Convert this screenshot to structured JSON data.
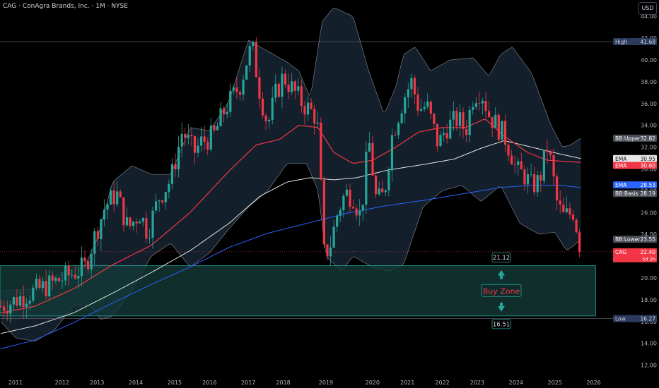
{
  "header": {
    "title": "CAG · ConAgra Brands, Inc. · 1M · NYSE",
    "currency_button": "USD"
  },
  "colors": {
    "background": "#000000",
    "up_candle": "#26a69a",
    "down_candle": "#f23645",
    "bollinger_band": "#9598a1",
    "bollinger_fill": "#1a2a3a",
    "ema_fast": "#f23645",
    "ema_slow": "#e0e0e0",
    "basis": "#2962ff",
    "buy_zone_fill": "#133a37",
    "buy_zone_border": "#26a69a",
    "buy_zone_text": "#f23645"
  },
  "chart_data": {
    "type": "candlestick",
    "ylim": [
      11,
      45.5
    ],
    "xlim": [
      2010.6,
      2026.6
    ],
    "yticks": [
      12,
      14,
      16,
      18,
      20,
      22,
      24,
      26,
      28,
      30,
      32,
      34,
      36,
      38,
      40,
      42,
      44
    ],
    "xticks": [
      {
        "x": 2011.0,
        "label": "2011"
      },
      {
        "x": 2012.2,
        "label": "2012"
      },
      {
        "x": 2013.1,
        "label": "2013"
      },
      {
        "x": 2014.1,
        "label": "2014"
      },
      {
        "x": 2015.1,
        "label": "2015"
      },
      {
        "x": 2016.0,
        "label": "2016"
      },
      {
        "x": 2017.0,
        "label": "2017"
      },
      {
        "x": 2017.9,
        "label": "2018"
      },
      {
        "x": 2019.0,
        "label": "2019"
      },
      {
        "x": 2020.2,
        "label": "2020"
      },
      {
        "x": 2021.1,
        "label": "2021"
      },
      {
        "x": 2022.0,
        "label": "2022"
      },
      {
        "x": 2022.9,
        "label": "2023"
      },
      {
        "x": 2023.9,
        "label": "2024"
      },
      {
        "x": 2024.9,
        "label": "2025"
      },
      {
        "x": 2025.9,
        "label": "2026"
      }
    ],
    "high_line": 41.68,
    "low_line": 16.27,
    "buy_zone": {
      "top": 21.12,
      "bottom": 16.51,
      "label": "Buy Zone",
      "top_label": "21.12",
      "bottom_label": "16.51"
    },
    "anchors": [
      [
        2010.62,
        17.4
      ],
      [
        2010.9,
        17.8
      ],
      [
        2011.3,
        18.5
      ],
      [
        2011.7,
        19.1
      ],
      [
        2012.0,
        19.6
      ],
      [
        2012.4,
        20.3
      ],
      [
        2012.8,
        21.0
      ],
      [
        2013.0,
        23.4
      ],
      [
        2013.3,
        26.5
      ],
      [
        2013.6,
        27.8
      ],
      [
        2013.9,
        24.5
      ],
      [
        2014.2,
        26.0
      ],
      [
        2014.4,
        24.2
      ],
      [
        2014.7,
        27.4
      ],
      [
        2015.0,
        29.0
      ],
      [
        2015.3,
        33.5
      ],
      [
        2015.6,
        31.5
      ],
      [
        2015.8,
        32.5
      ],
      [
        2016.1,
        33.0
      ],
      [
        2016.4,
        35.5
      ],
      [
        2016.8,
        37.8
      ],
      [
        2017.0,
        40.5
      ],
      [
        2017.1,
        41.2
      ],
      [
        2017.3,
        37.0
      ],
      [
        2017.5,
        34.0
      ],
      [
        2017.7,
        36.8
      ],
      [
        2017.9,
        38.5
      ],
      [
        2018.2,
        37.0
      ],
      [
        2018.4,
        36.0
      ],
      [
        2018.7,
        35.0
      ],
      [
        2018.8,
        33.5
      ],
      [
        2018.95,
        22.2
      ],
      [
        2019.1,
        22.8
      ],
      [
        2019.3,
        26.0
      ],
      [
        2019.5,
        27.8
      ],
      [
        2019.7,
        27.5
      ],
      [
        2019.9,
        25.5
      ],
      [
        2020.1,
        32.8
      ],
      [
        2020.3,
        27.0
      ],
      [
        2020.5,
        27.6
      ],
      [
        2020.7,
        33.0
      ],
      [
        2021.0,
        36.5
      ],
      [
        2021.2,
        38.0
      ],
      [
        2021.4,
        35.5
      ],
      [
        2021.6,
        35.8
      ],
      [
        2021.9,
        32.2
      ],
      [
        2022.1,
        33.8
      ],
      [
        2022.4,
        34.6
      ],
      [
        2022.6,
        33.5
      ],
      [
        2022.8,
        36.8
      ],
      [
        2023.0,
        37.2
      ],
      [
        2023.2,
        35.0
      ],
      [
        2023.4,
        34.0
      ],
      [
        2023.6,
        33.0
      ],
      [
        2023.8,
        31.2
      ],
      [
        2023.9,
        29.8
      ],
      [
        2024.1,
        29.5
      ],
      [
        2024.3,
        28.4
      ],
      [
        2024.5,
        28.9
      ],
      [
        2024.7,
        32.0
      ],
      [
        2024.8,
        30.5
      ],
      [
        2024.95,
        27.0
      ],
      [
        2025.1,
        25.6
      ],
      [
        2025.3,
        25.9
      ],
      [
        2025.4,
        26.2
      ],
      [
        2025.5,
        23.5
      ],
      [
        2025.57,
        22.4
      ]
    ],
    "ema_fast": [
      [
        2010.62,
        16.8
      ],
      [
        2011.5,
        17.4
      ],
      [
        2012.5,
        19.0
      ],
      [
        2013.5,
        21.2
      ],
      [
        2014.5,
        23.0
      ],
      [
        2015.5,
        26.0
      ],
      [
        2016.5,
        29.8
      ],
      [
        2017.2,
        32.2
      ],
      [
        2017.8,
        32.7
      ],
      [
        2018.3,
        34.0
      ],
      [
        2018.8,
        33.8
      ],
      [
        2019.2,
        31.5
      ],
      [
        2019.7,
        30.5
      ],
      [
        2020.2,
        30.8
      ],
      [
        2020.8,
        32.0
      ],
      [
        2021.4,
        33.4
      ],
      [
        2022.0,
        33.8
      ],
      [
        2022.6,
        33.8
      ],
      [
        2023.1,
        34.6
      ],
      [
        2023.6,
        33.0
      ],
      [
        2024.2,
        31.5
      ],
      [
        2024.7,
        30.8
      ],
      [
        2025.57,
        30.6
      ]
    ],
    "ema_slow": [
      [
        2010.62,
        14.9
      ],
      [
        2011.5,
        15.6
      ],
      [
        2012.5,
        16.8
      ],
      [
        2013.5,
        18.6
      ],
      [
        2014.5,
        20.5
      ],
      [
        2015.5,
        22.5
      ],
      [
        2016.5,
        25.0
      ],
      [
        2017.3,
        27.5
      ],
      [
        2018.0,
        28.8
      ],
      [
        2018.6,
        29.2
      ],
      [
        2019.2,
        29.0
      ],
      [
        2019.8,
        29.2
      ],
      [
        2020.6,
        29.9
      ],
      [
        2021.5,
        30.4
      ],
      [
        2022.3,
        30.9
      ],
      [
        2023.0,
        31.9
      ],
      [
        2023.6,
        32.6
      ],
      [
        2024.3,
        32.0
      ],
      [
        2025.0,
        31.4
      ],
      [
        2025.57,
        30.95
      ]
    ],
    "basis": [
      [
        2010.62,
        13.5
      ],
      [
        2011.5,
        14.3
      ],
      [
        2012.5,
        15.9
      ],
      [
        2013.5,
        17.7
      ],
      [
        2014.5,
        19.4
      ],
      [
        2015.5,
        21.0
      ],
      [
        2016.5,
        22.8
      ],
      [
        2017.5,
        24.1
      ],
      [
        2018.5,
        25.0
      ],
      [
        2019.5,
        25.9
      ],
      [
        2020.5,
        26.6
      ],
      [
        2021.5,
        27.1
      ],
      [
        2022.5,
        27.7
      ],
      [
        2023.5,
        28.3
      ],
      [
        2024.3,
        28.5
      ],
      [
        2025.0,
        28.5
      ],
      [
        2025.57,
        28.3
      ]
    ],
    "bb_upper": [
      [
        2010.62,
        18.8
      ],
      [
        2011.5,
        19.0
      ],
      [
        2012.2,
        20.5
      ],
      [
        2012.8,
        21.2
      ],
      [
        2013.1,
        23.5
      ],
      [
        2013.5,
        28.8
      ],
      [
        2014.0,
        30.3
      ],
      [
        2014.5,
        29.5
      ],
      [
        2015.0,
        29.5
      ],
      [
        2015.5,
        33.8
      ],
      [
        2016.0,
        33.5
      ],
      [
        2016.5,
        36.2
      ],
      [
        2017.0,
        41.8
      ],
      [
        2017.5,
        40.8
      ],
      [
        2018.0,
        39.8
      ],
      [
        2018.3,
        39.0
      ],
      [
        2018.6,
        36.5
      ],
      [
        2018.9,
        43.5
      ],
      [
        2019.2,
        44.8
      ],
      [
        2019.7,
        44.0
      ],
      [
        2020.1,
        39.0
      ],
      [
        2020.5,
        35.0
      ],
      [
        2020.8,
        37.5
      ],
      [
        2021.0,
        40.5
      ],
      [
        2021.3,
        41.2
      ],
      [
        2021.7,
        39.0
      ],
      [
        2022.2,
        40.0
      ],
      [
        2022.8,
        40.2
      ],
      [
        2023.2,
        38.5
      ],
      [
        2023.5,
        40.5
      ],
      [
        2023.8,
        41.2
      ],
      [
        2024.3,
        38.8
      ],
      [
        2024.8,
        34.0
      ],
      [
        2025.1,
        32.0
      ],
      [
        2025.3,
        32.2
      ],
      [
        2025.57,
        32.82
      ]
    ],
    "bb_lower": [
      [
        2010.62,
        16.0
      ],
      [
        2011.0,
        14.5
      ],
      [
        2011.5,
        14.2
      ],
      [
        2012.0,
        15.2
      ],
      [
        2012.5,
        17.5
      ],
      [
        2012.9,
        17.5
      ],
      [
        2013.2,
        16.2
      ],
      [
        2013.5,
        16.5
      ],
      [
        2014.0,
        18.8
      ],
      [
        2014.5,
        22.0
      ],
      [
        2015.0,
        23.2
      ],
      [
        2015.5,
        21.0
      ],
      [
        2016.0,
        22.3
      ],
      [
        2016.5,
        24.5
      ],
      [
        2017.0,
        26.5
      ],
      [
        2017.5,
        28.0
      ],
      [
        2018.0,
        30.5
      ],
      [
        2018.5,
        30.5
      ],
      [
        2018.8,
        28.0
      ],
      [
        2019.0,
        22.0
      ],
      [
        2019.4,
        20.6
      ],
      [
        2019.7,
        22.0
      ],
      [
        2020.2,
        21.0
      ],
      [
        2020.6,
        20.6
      ],
      [
        2021.0,
        21.2
      ],
      [
        2021.5,
        26.5
      ],
      [
        2022.0,
        28.0
      ],
      [
        2022.5,
        28.5
      ],
      [
        2023.0,
        27.0
      ],
      [
        2023.5,
        28.5
      ],
      [
        2024.0,
        25.0
      ],
      [
        2024.5,
        24.0
      ],
      [
        2024.9,
        24.2
      ],
      [
        2025.2,
        22.5
      ],
      [
        2025.4,
        23.0
      ],
      [
        2025.57,
        23.55
      ]
    ],
    "price_labels": [
      {
        "text": "High",
        "value": "41.68",
        "y": 41.68,
        "color": "#2c3a5e",
        "text_color": "#d1d4dc"
      },
      {
        "text": "BB:Upper",
        "value": "32.82",
        "y": 32.82,
        "color": "#4a4d57",
        "text_color": "#ffffff"
      },
      {
        "text": "EMA",
        "value": "30.95",
        "y": 30.95,
        "color": "#e8e8e8",
        "text_color": "#131722"
      },
      {
        "text": "EMA",
        "value": "30.60",
        "y": 30.32,
        "color": "#f23645",
        "text_color": "#ffffff"
      },
      {
        "text": "EMA",
        "value": "28.53",
        "y": 28.53,
        "color": "#2962ff",
        "text_color": "#ffffff"
      },
      {
        "text": "BB:Basis",
        "value": "28.19",
        "y": 27.75,
        "color": "#4a4d57",
        "text_color": "#ffffff"
      },
      {
        "text": "BB:Lower",
        "value": "23.55",
        "y": 23.55,
        "color": "#4a4d57",
        "text_color": "#ffffff"
      },
      {
        "text": "CAG",
        "value": "22.40",
        "y": 22.4,
        "color": "#f23645",
        "text_color": "#ffffff",
        "sub": "5d 2h"
      },
      {
        "text": "Low",
        "value": "16.27",
        "y": 16.27,
        "color": "#2c3a5e",
        "text_color": "#d1d4dc"
      }
    ],
    "current_price": 22.4
  }
}
